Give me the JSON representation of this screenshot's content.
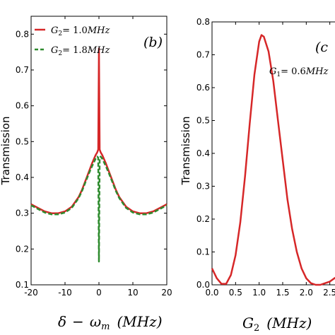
{
  "chart_data": [
    {
      "type": "line",
      "panel_label": "(b)",
      "xlabel": "δ − ω_m (MHz)",
      "ylabel": "Transmission",
      "xlim": [
        -20,
        20
      ],
      "ylim": [
        0.1,
        0.85
      ],
      "xticks": [
        -20,
        -10,
        0,
        10,
        20
      ],
      "yticks": [
        0.1,
        0.2,
        0.3,
        0.4,
        0.5,
        0.6,
        0.7,
        0.8
      ],
      "legend_position": "top-left",
      "series": [
        {
          "name": "G2 = 1.0MHz",
          "color": "#d62728",
          "style": "solid",
          "x": [
            -20,
            -18,
            -16,
            -14,
            -12,
            -10,
            -8,
            -6,
            -5,
            -4,
            -3,
            -2,
            -1,
            -0.5,
            -0.2,
            0,
            0.2,
            0.5,
            1,
            2,
            3,
            4,
            5,
            6,
            8,
            10,
            12,
            14,
            16,
            18,
            20
          ],
          "y": [
            0.325,
            0.315,
            0.305,
            0.3,
            0.3,
            0.305,
            0.318,
            0.345,
            0.365,
            0.39,
            0.415,
            0.44,
            0.462,
            0.47,
            0.478,
            0.76,
            0.478,
            0.47,
            0.462,
            0.44,
            0.415,
            0.39,
            0.365,
            0.345,
            0.318,
            0.305,
            0.3,
            0.3,
            0.305,
            0.315,
            0.325
          ]
        },
        {
          "name": "G2 = 1.8MHz",
          "color": "#2e8b2e",
          "style": "dashed",
          "x": [
            -20,
            -18,
            -16,
            -14,
            -12,
            -10,
            -8,
            -6,
            -5,
            -4,
            -3,
            -2,
            -1,
            -0.5,
            -0.2,
            0,
            0.2,
            0.5,
            1,
            2,
            3,
            4,
            5,
            6,
            8,
            10,
            12,
            14,
            16,
            18,
            20
          ],
          "y": [
            0.322,
            0.312,
            0.302,
            0.297,
            0.297,
            0.302,
            0.315,
            0.342,
            0.362,
            0.386,
            0.41,
            0.432,
            0.452,
            0.458,
            0.455,
            0.165,
            0.455,
            0.458,
            0.452,
            0.432,
            0.41,
            0.386,
            0.362,
            0.342,
            0.315,
            0.302,
            0.297,
            0.297,
            0.302,
            0.312,
            0.322
          ]
        }
      ]
    },
    {
      "type": "line",
      "panel_label": "(c",
      "annotation": "G1 = 0.6MHz",
      "xlabel": "G2 (MHz)",
      "ylabel": "Transmission",
      "xlim": [
        0,
        2.7
      ],
      "ylim": [
        0.0,
        0.8
      ],
      "xticks": [
        0.0,
        0.5,
        1.0,
        1.5,
        2.0,
        2.5
      ],
      "yticks": [
        0.0,
        0.1,
        0.2,
        0.3,
        0.4,
        0.5,
        0.6,
        0.7,
        0.8
      ],
      "series": [
        {
          "name": "",
          "color": "#d62728",
          "style": "solid",
          "x": [
            0.0,
            0.1,
            0.2,
            0.3,
            0.4,
            0.5,
            0.6,
            0.7,
            0.8,
            0.9,
            1.0,
            1.05,
            1.1,
            1.2,
            1.3,
            1.4,
            1.5,
            1.6,
            1.7,
            1.8,
            1.9,
            2.0,
            2.1,
            2.2,
            2.3,
            2.4,
            2.5,
            2.6,
            2.7
          ],
          "y": [
            0.05,
            0.02,
            0.003,
            0.003,
            0.03,
            0.09,
            0.19,
            0.33,
            0.49,
            0.64,
            0.74,
            0.76,
            0.755,
            0.71,
            0.62,
            0.5,
            0.38,
            0.26,
            0.17,
            0.1,
            0.05,
            0.02,
            0.005,
            0.0,
            0.0,
            0.005,
            0.01,
            0.02,
            0.03
          ]
        }
      ]
    }
  ],
  "legend": {
    "entry1": {
      "lhs": "G",
      "sub": "2",
      "rhs": "= 1.0",
      "unit": "MHz"
    },
    "entry2": {
      "lhs": "G",
      "sub": "2",
      "rhs": "= 1.8",
      "unit": "MHz"
    }
  },
  "annotation_c": {
    "lhs": "G",
    "sub": "1",
    "rhs": "= 0.6",
    "unit": "MHz"
  },
  "xlabel_b": {
    "delta": "δ",
    "minus": "−",
    "omega": "ω",
    "sub": "m",
    "unit": "(MHz)"
  },
  "xlabel_c": {
    "lhs": "G",
    "sub": "2",
    "unit": "(MHz)"
  }
}
